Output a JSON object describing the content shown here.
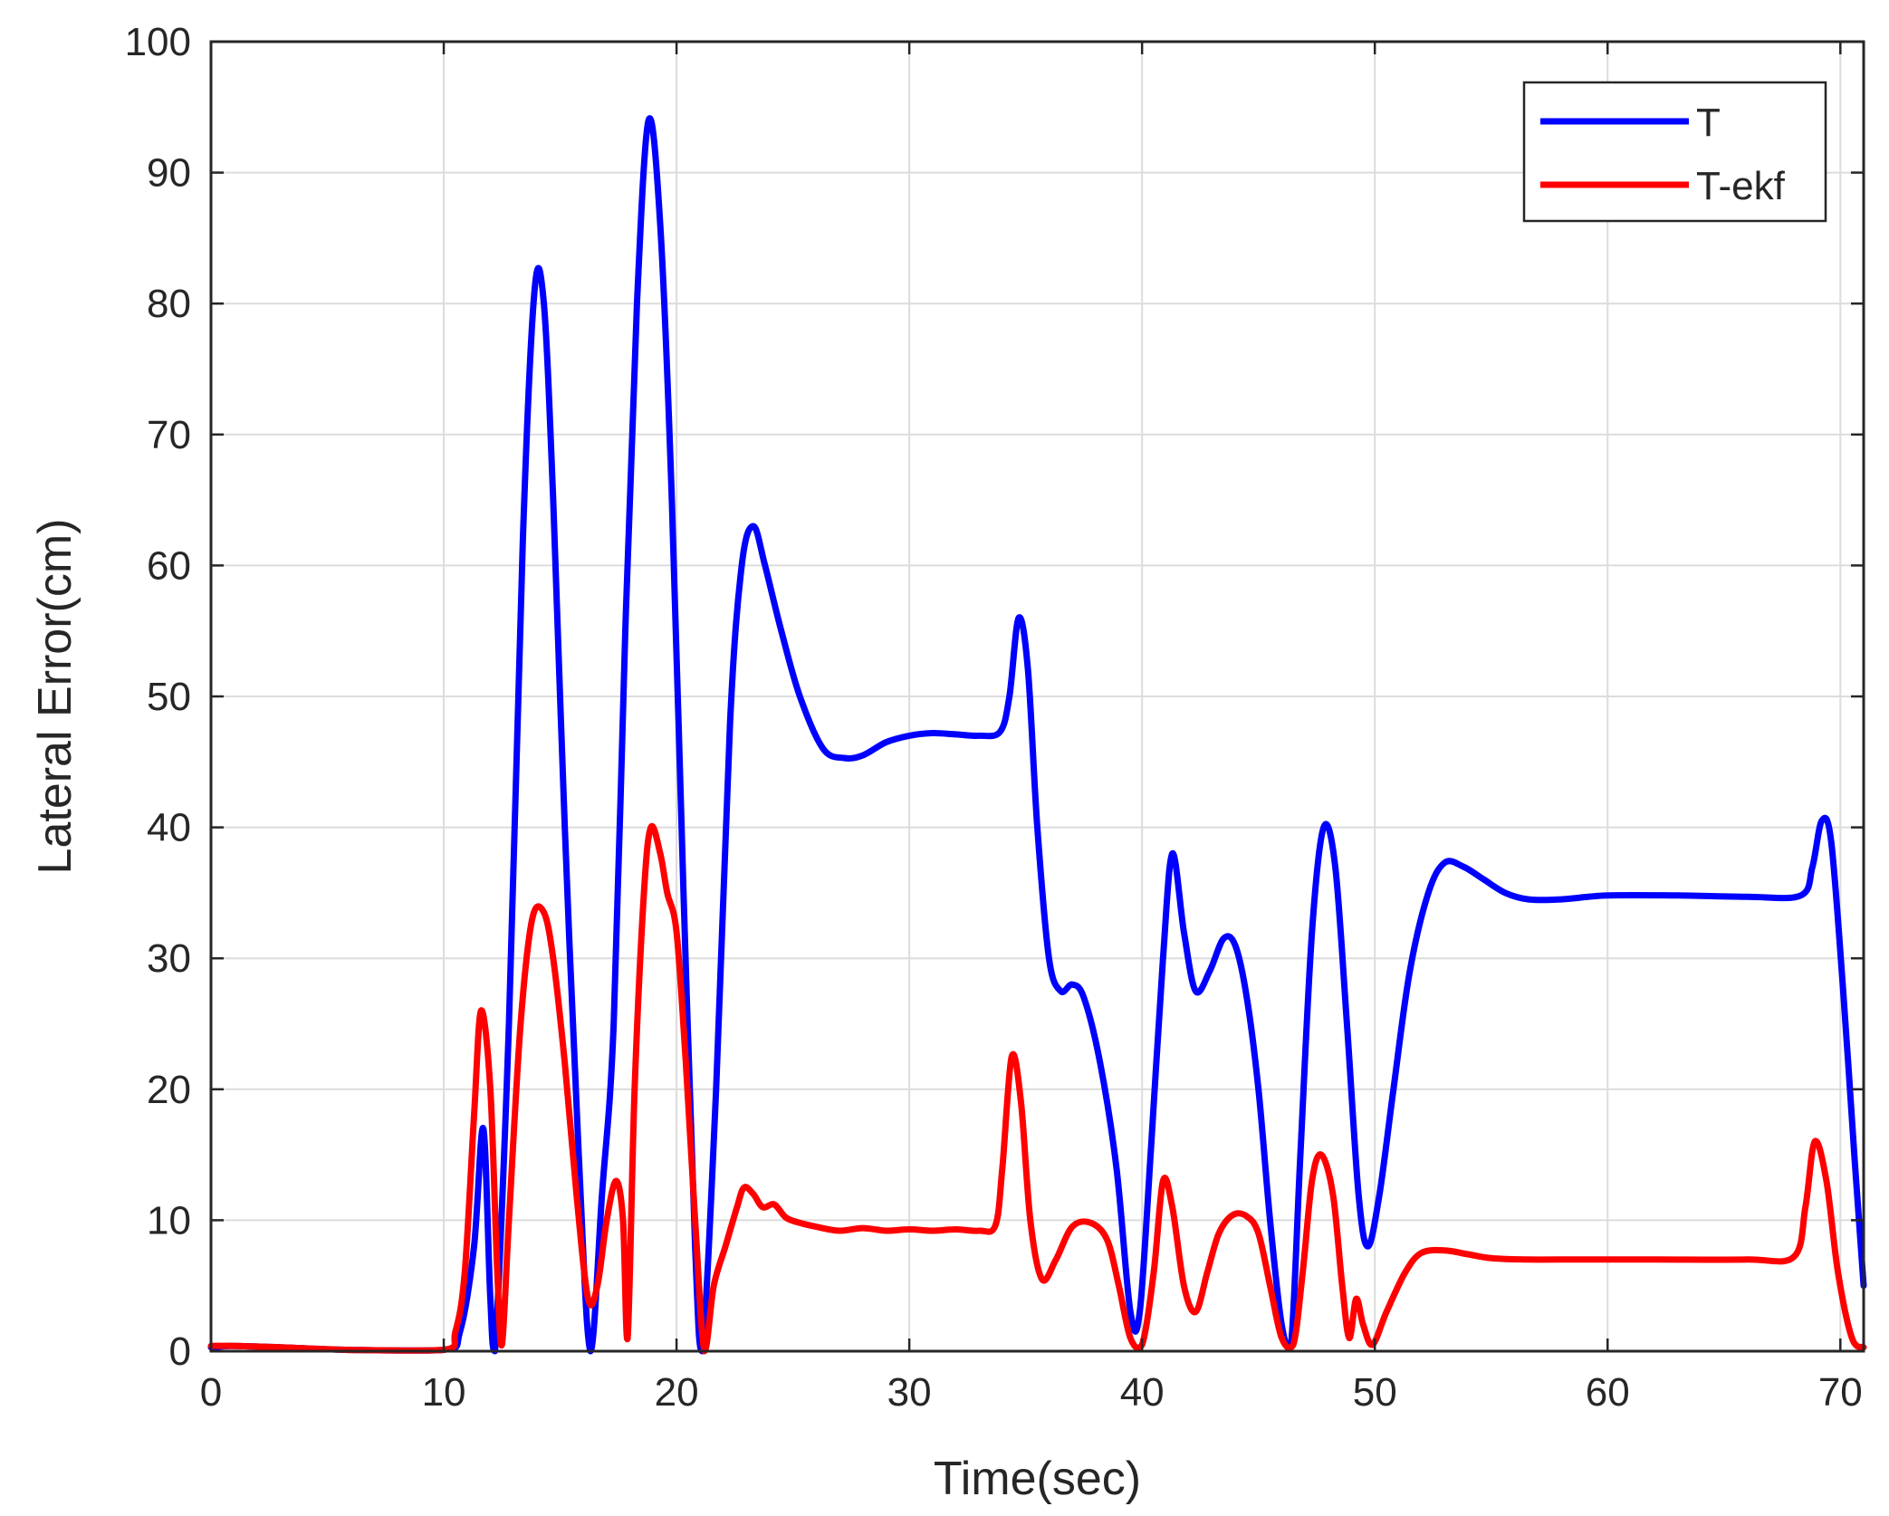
{
  "chart_data": {
    "type": "line",
    "title": "",
    "xlabel": "Time(sec)",
    "ylabel": "Lateral Error(cm)",
    "xlim": [
      0,
      71
    ],
    "ylim": [
      0,
      100
    ],
    "xticks": [
      0,
      10,
      20,
      30,
      40,
      50,
      60,
      70
    ],
    "yticks": [
      0,
      10,
      20,
      30,
      40,
      50,
      60,
      70,
      80,
      90,
      100
    ],
    "grid": true,
    "legend_position": "top-right",
    "series": [
      {
        "name": "T",
        "color": "#0000ff",
        "points": [
          [
            0,
            0.3
          ],
          [
            1,
            0.4
          ],
          [
            3,
            0.3
          ],
          [
            6,
            0.1
          ],
          [
            10,
            0.1
          ],
          [
            10.7,
            1.5
          ],
          [
            11.3,
            8
          ],
          [
            11.7,
            17
          ],
          [
            12.0,
            4
          ],
          [
            12.2,
            0
          ],
          [
            12.8,
            25
          ],
          [
            13.4,
            62
          ],
          [
            13.9,
            81
          ],
          [
            14.3,
            80
          ],
          [
            14.7,
            65
          ],
          [
            15.2,
            40
          ],
          [
            15.8,
            15
          ],
          [
            16.3,
            0
          ],
          [
            16.8,
            12
          ],
          [
            17.3,
            25
          ],
          [
            17.8,
            55
          ],
          [
            18.3,
            80
          ],
          [
            18.8,
            94
          ],
          [
            19.3,
            86
          ],
          [
            19.8,
            65
          ],
          [
            20.3,
            35
          ],
          [
            20.8,
            8
          ],
          [
            21.1,
            0
          ],
          [
            21.7,
            20
          ],
          [
            22.3,
            48
          ],
          [
            22.8,
            60
          ],
          [
            23.3,
            63
          ],
          [
            23.8,
            60
          ],
          [
            24.5,
            55
          ],
          [
            25.3,
            50
          ],
          [
            26.3,
            46
          ],
          [
            27.2,
            45.3
          ],
          [
            28.0,
            45.5
          ],
          [
            29.0,
            46.5
          ],
          [
            30.0,
            47
          ],
          [
            31.0,
            47.2
          ],
          [
            32.0,
            47.1
          ],
          [
            33.0,
            47
          ],
          [
            33.9,
            47.3
          ],
          [
            34.3,
            50
          ],
          [
            34.7,
            56
          ],
          [
            35.1,
            52
          ],
          [
            35.5,
            40
          ],
          [
            36.0,
            30
          ],
          [
            36.5,
            27.5
          ],
          [
            37.0,
            28
          ],
          [
            37.5,
            27
          ],
          [
            38.2,
            22
          ],
          [
            38.9,
            14
          ],
          [
            39.5,
            3
          ],
          [
            39.9,
            3
          ],
          [
            40.4,
            16
          ],
          [
            40.9,
            30
          ],
          [
            41.3,
            38
          ],
          [
            41.8,
            32
          ],
          [
            42.3,
            27.5
          ],
          [
            42.9,
            29
          ],
          [
            43.5,
            31.5
          ],
          [
            44.0,
            31
          ],
          [
            44.5,
            27
          ],
          [
            45.0,
            20
          ],
          [
            45.5,
            10
          ],
          [
            46.0,
            2
          ],
          [
            46.4,
            0.5
          ],
          [
            46.8,
            15
          ],
          [
            47.3,
            32
          ],
          [
            47.8,
            40
          ],
          [
            48.3,
            37
          ],
          [
            48.8,
            25
          ],
          [
            49.3,
            12
          ],
          [
            49.7,
            8
          ],
          [
            50.2,
            12
          ],
          [
            50.8,
            20
          ],
          [
            51.5,
            29
          ],
          [
            52.3,
            35
          ],
          [
            53.0,
            37.3
          ],
          [
            53.8,
            37
          ],
          [
            54.7,
            36
          ],
          [
            55.6,
            35
          ],
          [
            56.6,
            34.5
          ],
          [
            58.0,
            34.5
          ],
          [
            60.0,
            34.8
          ],
          [
            63.0,
            34.8
          ],
          [
            66.0,
            34.7
          ],
          [
            68.3,
            34.8
          ],
          [
            68.8,
            37
          ],
          [
            69.2,
            40.5
          ],
          [
            69.6,
            39
          ],
          [
            70.1,
            28
          ],
          [
            70.6,
            15
          ],
          [
            71,
            5
          ]
        ]
      },
      {
        "name": "T-ekf",
        "color": "#ff0000",
        "points": [
          [
            0,
            0.4
          ],
          [
            1,
            0.4
          ],
          [
            3,
            0.3
          ],
          [
            6,
            0.1
          ],
          [
            10,
            0.1
          ],
          [
            10.5,
            1.5
          ],
          [
            10.9,
            6
          ],
          [
            11.3,
            18
          ],
          [
            11.6,
            26
          ],
          [
            12.0,
            20
          ],
          [
            12.3,
            6
          ],
          [
            12.5,
            0.5
          ],
          [
            12.8,
            10
          ],
          [
            13.3,
            25
          ],
          [
            13.8,
            33
          ],
          [
            14.3,
            33.5
          ],
          [
            14.7,
            30
          ],
          [
            15.2,
            22
          ],
          [
            15.7,
            12
          ],
          [
            16.2,
            4
          ],
          [
            16.6,
            5
          ],
          [
            17.0,
            10
          ],
          [
            17.4,
            13
          ],
          [
            17.7,
            10
          ],
          [
            17.9,
            1
          ],
          [
            18.2,
            20
          ],
          [
            18.6,
            35
          ],
          [
            18.9,
            40
          ],
          [
            19.3,
            38
          ],
          [
            19.6,
            35
          ],
          [
            20.0,
            32
          ],
          [
            20.4,
            22
          ],
          [
            20.8,
            10
          ],
          [
            21.2,
            0
          ],
          [
            21.6,
            5
          ],
          [
            22.1,
            8
          ],
          [
            22.6,
            11
          ],
          [
            22.9,
            12.5
          ],
          [
            23.3,
            12
          ],
          [
            23.7,
            11
          ],
          [
            24.2,
            11.2
          ],
          [
            24.7,
            10.2
          ],
          [
            25.3,
            9.8
          ],
          [
            26.0,
            9.5
          ],
          [
            27.0,
            9.2
          ],
          [
            28.0,
            9.4
          ],
          [
            29.0,
            9.2
          ],
          [
            30.0,
            9.3
          ],
          [
            31.0,
            9.2
          ],
          [
            32.0,
            9.3
          ],
          [
            33.0,
            9.2
          ],
          [
            33.7,
            9.6
          ],
          [
            34.0,
            14
          ],
          [
            34.4,
            22.5
          ],
          [
            34.8,
            19
          ],
          [
            35.2,
            10
          ],
          [
            35.7,
            5.5
          ],
          [
            36.3,
            7
          ],
          [
            37.0,
            9.5
          ],
          [
            37.8,
            9.8
          ],
          [
            38.5,
            8.5
          ],
          [
            39.0,
            5
          ],
          [
            39.5,
            1
          ],
          [
            40.0,
            0.5
          ],
          [
            40.5,
            6
          ],
          [
            40.9,
            13
          ],
          [
            41.3,
            11
          ],
          [
            41.8,
            5
          ],
          [
            42.3,
            3
          ],
          [
            42.8,
            6
          ],
          [
            43.3,
            9
          ],
          [
            43.9,
            10.4
          ],
          [
            44.5,
            10.3
          ],
          [
            45.0,
            9
          ],
          [
            45.5,
            5
          ],
          [
            46.0,
            1
          ],
          [
            46.5,
            0.5
          ],
          [
            46.9,
            6
          ],
          [
            47.3,
            13
          ],
          [
            47.7,
            15
          ],
          [
            48.2,
            12
          ],
          [
            48.6,
            5
          ],
          [
            48.9,
            1
          ],
          [
            49.2,
            4
          ],
          [
            49.5,
            2
          ],
          [
            49.9,
            0.5
          ],
          [
            50.5,
            3
          ],
          [
            51.3,
            6
          ],
          [
            52.0,
            7.5
          ],
          [
            53.0,
            7.7
          ],
          [
            54.0,
            7.4
          ],
          [
            55.0,
            7.1
          ],
          [
            56.5,
            7
          ],
          [
            58.0,
            7
          ],
          [
            62.0,
            7
          ],
          [
            66.0,
            7
          ],
          [
            68.0,
            7.2
          ],
          [
            68.5,
            11
          ],
          [
            68.9,
            16
          ],
          [
            69.4,
            13
          ],
          [
            69.9,
            6
          ],
          [
            70.5,
            1
          ],
          [
            71,
            0.3
          ]
        ]
      }
    ]
  }
}
